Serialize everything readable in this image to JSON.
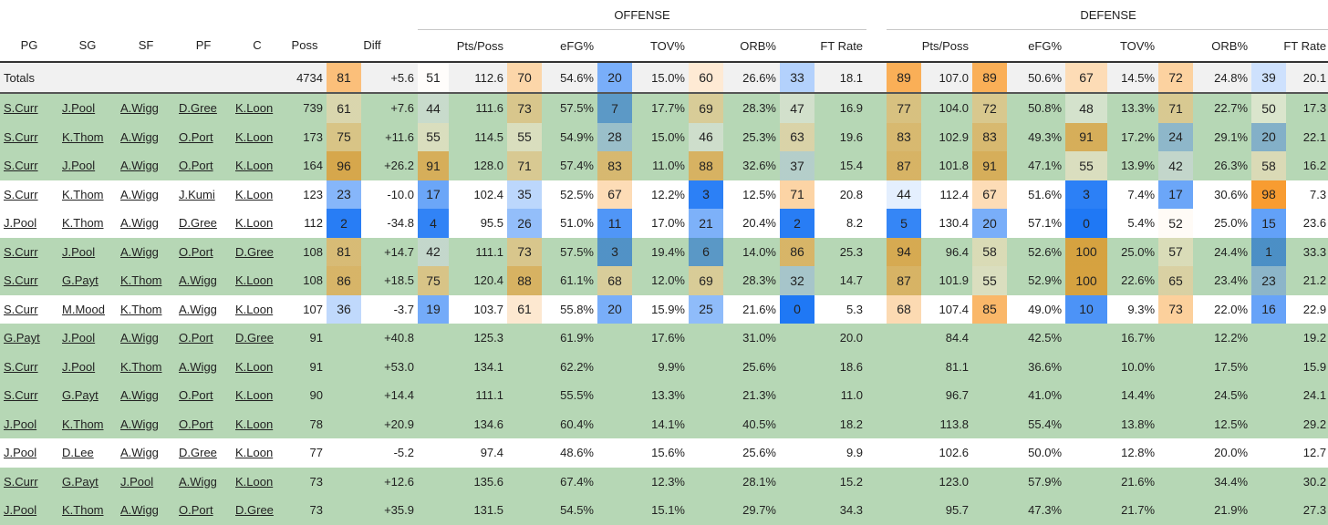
{
  "groups": {
    "offense": "OFFENSE",
    "defense": "DEFENSE"
  },
  "headers": {
    "pg": "PG",
    "sg": "SG",
    "sf": "SF",
    "pf": "PF",
    "c": "C",
    "poss": "Poss",
    "diff": "Diff",
    "o_pts": "Pts/Poss",
    "o_efg": "eFG%",
    "o_tov": "TOV%",
    "o_orb": "ORB%",
    "o_ft": "FT Rate",
    "d_pts": "Pts/Poss",
    "d_efg": "eFG%",
    "d_tov": "TOV%",
    "d_orb": "ORB%",
    "d_ft": "FT Rate"
  },
  "totals": {
    "label": "Totals",
    "poss": "4734",
    "diff_pct": "81",
    "diff": "+5.6",
    "o": [
      [
        "51",
        "112.6"
      ],
      [
        "70",
        "54.6%"
      ],
      [
        "20",
        "15.0%"
      ],
      [
        "60",
        "26.6%"
      ],
      [
        "33",
        "18.1"
      ]
    ],
    "d": [
      [
        "89",
        "107.0"
      ],
      [
        "89",
        "50.6%"
      ],
      [
        "67",
        "14.5%"
      ],
      [
        "72",
        "24.8%"
      ],
      [
        "39",
        "20.1"
      ]
    ]
  },
  "rows": [
    {
      "shade": "green",
      "players": [
        "S.Curr",
        "J.Pool",
        "A.Wigg",
        "D.Gree",
        "K.Loon"
      ],
      "poss": "739",
      "diff_pct": "61",
      "diff": "+7.6",
      "o": [
        [
          "44",
          "111.6"
        ],
        [
          "73",
          "57.5%"
        ],
        [
          "7",
          "17.7%"
        ],
        [
          "69",
          "28.3%"
        ],
        [
          "47",
          "16.9"
        ]
      ],
      "d": [
        [
          "77",
          "104.0"
        ],
        [
          "72",
          "50.8%"
        ],
        [
          "48",
          "13.3%"
        ],
        [
          "71",
          "22.7%"
        ],
        [
          "50",
          "17.3"
        ]
      ]
    },
    {
      "shade": "green",
      "players": [
        "S.Curr",
        "K.Thom",
        "A.Wigg",
        "O.Port",
        "K.Loon"
      ],
      "poss": "173",
      "diff_pct": "75",
      "diff": "+11.6",
      "o": [
        [
          "55",
          "114.5"
        ],
        [
          "55",
          "54.9%"
        ],
        [
          "28",
          "15.0%"
        ],
        [
          "46",
          "25.3%"
        ],
        [
          "63",
          "19.6"
        ]
      ],
      "d": [
        [
          "83",
          "102.9"
        ],
        [
          "83",
          "49.3%"
        ],
        [
          "91",
          "17.2%"
        ],
        [
          "24",
          "29.1%"
        ],
        [
          "20",
          "22.1"
        ]
      ]
    },
    {
      "shade": "green",
      "players": [
        "S.Curr",
        "J.Pool",
        "A.Wigg",
        "O.Port",
        "K.Loon"
      ],
      "poss": "164",
      "diff_pct": "96",
      "diff": "+26.2",
      "o": [
        [
          "91",
          "128.0"
        ],
        [
          "71",
          "57.4%"
        ],
        [
          "83",
          "11.0%"
        ],
        [
          "88",
          "32.6%"
        ],
        [
          "37",
          "15.4"
        ]
      ],
      "d": [
        [
          "87",
          "101.8"
        ],
        [
          "91",
          "47.1%"
        ],
        [
          "55",
          "13.9%"
        ],
        [
          "42",
          "26.3%"
        ],
        [
          "58",
          "16.2"
        ]
      ]
    },
    {
      "shade": "white",
      "players": [
        "S.Curr",
        "K.Thom",
        "A.Wigg",
        "J.Kumi",
        "K.Loon"
      ],
      "poss": "123",
      "diff_pct": "23",
      "diff": "-10.0",
      "o": [
        [
          "17",
          "102.4"
        ],
        [
          "35",
          "52.5%"
        ],
        [
          "67",
          "12.2%"
        ],
        [
          "3",
          "12.5%"
        ],
        [
          "71",
          "20.8"
        ]
      ],
      "d": [
        [
          "44",
          "112.4"
        ],
        [
          "67",
          "51.6%"
        ],
        [
          "3",
          "7.4%"
        ],
        [
          "17",
          "30.6%"
        ],
        [
          "98",
          "7.3"
        ]
      ]
    },
    {
      "shade": "white",
      "players": [
        "J.Pool",
        "K.Thom",
        "A.Wigg",
        "D.Gree",
        "K.Loon"
      ],
      "poss": "112",
      "diff_pct": "2",
      "diff": "-34.8",
      "o": [
        [
          "4",
          "95.5"
        ],
        [
          "26",
          "51.0%"
        ],
        [
          "11",
          "17.0%"
        ],
        [
          "21",
          "20.4%"
        ],
        [
          "2",
          "8.2"
        ]
      ],
      "d": [
        [
          "5",
          "130.4"
        ],
        [
          "20",
          "57.1%"
        ],
        [
          "0",
          "5.4%"
        ],
        [
          "52",
          "25.0%"
        ],
        [
          "15",
          "23.6"
        ]
      ]
    },
    {
      "shade": "green",
      "players": [
        "S.Curr",
        "J.Pool",
        "A.Wigg",
        "O.Port",
        "D.Gree"
      ],
      "poss": "108",
      "diff_pct": "81",
      "diff": "+14.7",
      "o": [
        [
          "42",
          "111.1"
        ],
        [
          "73",
          "57.5%"
        ],
        [
          "3",
          "19.4%"
        ],
        [
          "6",
          "14.0%"
        ],
        [
          "86",
          "25.3"
        ]
      ],
      "d": [
        [
          "94",
          "96.4"
        ],
        [
          "58",
          "52.6%"
        ],
        [
          "100",
          "25.0%"
        ],
        [
          "57",
          "24.4%"
        ],
        [
          "1",
          "33.3"
        ]
      ]
    },
    {
      "shade": "green",
      "players": [
        "S.Curr",
        "G.Payt",
        "K.Thom",
        "A.Wigg",
        "K.Loon"
      ],
      "poss": "108",
      "diff_pct": "86",
      "diff": "+18.5",
      "o": [
        [
          "75",
          "120.4"
        ],
        [
          "88",
          "61.1%"
        ],
        [
          "68",
          "12.0%"
        ],
        [
          "69",
          "28.3%"
        ],
        [
          "32",
          "14.7"
        ]
      ],
      "d": [
        [
          "87",
          "101.9"
        ],
        [
          "55",
          "52.9%"
        ],
        [
          "100",
          "22.6%"
        ],
        [
          "65",
          "23.4%"
        ],
        [
          "23",
          "21.2"
        ]
      ]
    },
    {
      "shade": "white",
      "players": [
        "S.Curr",
        "M.Mood",
        "K.Thom",
        "A.Wigg",
        "K.Loon"
      ],
      "poss": "107",
      "diff_pct": "36",
      "diff": "-3.7",
      "o": [
        [
          "19",
          "103.7"
        ],
        [
          "61",
          "55.8%"
        ],
        [
          "20",
          "15.9%"
        ],
        [
          "25",
          "21.6%"
        ],
        [
          "0",
          "5.3"
        ]
      ],
      "d": [
        [
          "68",
          "107.4"
        ],
        [
          "85",
          "49.0%"
        ],
        [
          "10",
          "9.3%"
        ],
        [
          "73",
          "22.0%"
        ],
        [
          "16",
          "22.9"
        ]
      ]
    },
    {
      "shade": "green",
      "players": [
        "G.Payt",
        "J.Pool",
        "A.Wigg",
        "O.Port",
        "D.Gree"
      ],
      "poss": "91",
      "diff_pct": "",
      "diff": "+40.8",
      "o": [
        [
          "",
          "125.3"
        ],
        [
          "",
          "61.9%"
        ],
        [
          "",
          "17.6%"
        ],
        [
          "",
          "31.0%"
        ],
        [
          "",
          "20.0"
        ]
      ],
      "d": [
        [
          "",
          "84.4"
        ],
        [
          "",
          "42.5%"
        ],
        [
          "",
          "16.7%"
        ],
        [
          "",
          "12.2%"
        ],
        [
          "",
          "19.2"
        ]
      ]
    },
    {
      "shade": "green",
      "players": [
        "S.Curr",
        "J.Pool",
        "K.Thom",
        "A.Wigg",
        "K.Loon"
      ],
      "poss": "91",
      "diff_pct": "",
      "diff": "+53.0",
      "o": [
        [
          "",
          "134.1"
        ],
        [
          "",
          "62.2%"
        ],
        [
          "",
          "9.9%"
        ],
        [
          "",
          "25.6%"
        ],
        [
          "",
          "18.6"
        ]
      ],
      "d": [
        [
          "",
          "81.1"
        ],
        [
          "",
          "36.6%"
        ],
        [
          "",
          "10.0%"
        ],
        [
          "",
          "17.5%"
        ],
        [
          "",
          "15.9"
        ]
      ]
    },
    {
      "shade": "green",
      "players": [
        "S.Curr",
        "G.Payt",
        "A.Wigg",
        "O.Port",
        "K.Loon"
      ],
      "poss": "90",
      "diff_pct": "",
      "diff": "+14.4",
      "o": [
        [
          "",
          "111.1"
        ],
        [
          "",
          "55.5%"
        ],
        [
          "",
          "13.3%"
        ],
        [
          "",
          "21.3%"
        ],
        [
          "",
          "11.0"
        ]
      ],
      "d": [
        [
          "",
          "96.7"
        ],
        [
          "",
          "41.0%"
        ],
        [
          "",
          "14.4%"
        ],
        [
          "",
          "24.5%"
        ],
        [
          "",
          "24.1"
        ]
      ]
    },
    {
      "shade": "green",
      "players": [
        "J.Pool",
        "K.Thom",
        "A.Wigg",
        "O.Port",
        "K.Loon"
      ],
      "poss": "78",
      "diff_pct": "",
      "diff": "+20.9",
      "o": [
        [
          "",
          "134.6"
        ],
        [
          "",
          "60.4%"
        ],
        [
          "",
          "14.1%"
        ],
        [
          "",
          "40.5%"
        ],
        [
          "",
          "18.2"
        ]
      ],
      "d": [
        [
          "",
          "113.8"
        ],
        [
          "",
          "55.4%"
        ],
        [
          "",
          "13.8%"
        ],
        [
          "",
          "12.5%"
        ],
        [
          "",
          "29.2"
        ]
      ]
    },
    {
      "shade": "white",
      "players": [
        "J.Pool",
        "D.Lee",
        "A.Wigg",
        "D.Gree",
        "K.Loon"
      ],
      "poss": "77",
      "diff_pct": "",
      "diff": "-5.2",
      "o": [
        [
          "",
          "97.4"
        ],
        [
          "",
          "48.6%"
        ],
        [
          "",
          "15.6%"
        ],
        [
          "",
          "25.6%"
        ],
        [
          "",
          "9.9"
        ]
      ],
      "d": [
        [
          "",
          "102.6"
        ],
        [
          "",
          "50.0%"
        ],
        [
          "",
          "12.8%"
        ],
        [
          "",
          "20.0%"
        ],
        [
          "",
          "12.7"
        ]
      ]
    },
    {
      "shade": "green",
      "players": [
        "S.Curr",
        "G.Payt",
        "J.Pool",
        "A.Wigg",
        "K.Loon"
      ],
      "poss": "73",
      "diff_pct": "",
      "diff": "+12.6",
      "o": [
        [
          "",
          "135.6"
        ],
        [
          "",
          "67.4%"
        ],
        [
          "",
          "12.3%"
        ],
        [
          "",
          "28.1%"
        ],
        [
          "",
          "15.2"
        ]
      ],
      "d": [
        [
          "",
          "123.0"
        ],
        [
          "",
          "57.9%"
        ],
        [
          "",
          "21.6%"
        ],
        [
          "",
          "34.4%"
        ],
        [
          "",
          "30.2"
        ]
      ]
    },
    {
      "shade": "green",
      "players": [
        "J.Pool",
        "K.Thom",
        "A.Wigg",
        "O.Port",
        "D.Gree"
      ],
      "poss": "73",
      "diff_pct": "",
      "diff": "+35.9",
      "o": [
        [
          "",
          "131.5"
        ],
        [
          "",
          "54.5%"
        ],
        [
          "",
          "15.1%"
        ],
        [
          "",
          "29.7%"
        ],
        [
          "",
          "34.3"
        ]
      ],
      "d": [
        [
          "",
          "95.7"
        ],
        [
          "",
          "47.3%"
        ],
        [
          "",
          "21.7%"
        ],
        [
          "",
          "21.9%"
        ],
        [
          "",
          "27.3"
        ]
      ]
    }
  ]
}
